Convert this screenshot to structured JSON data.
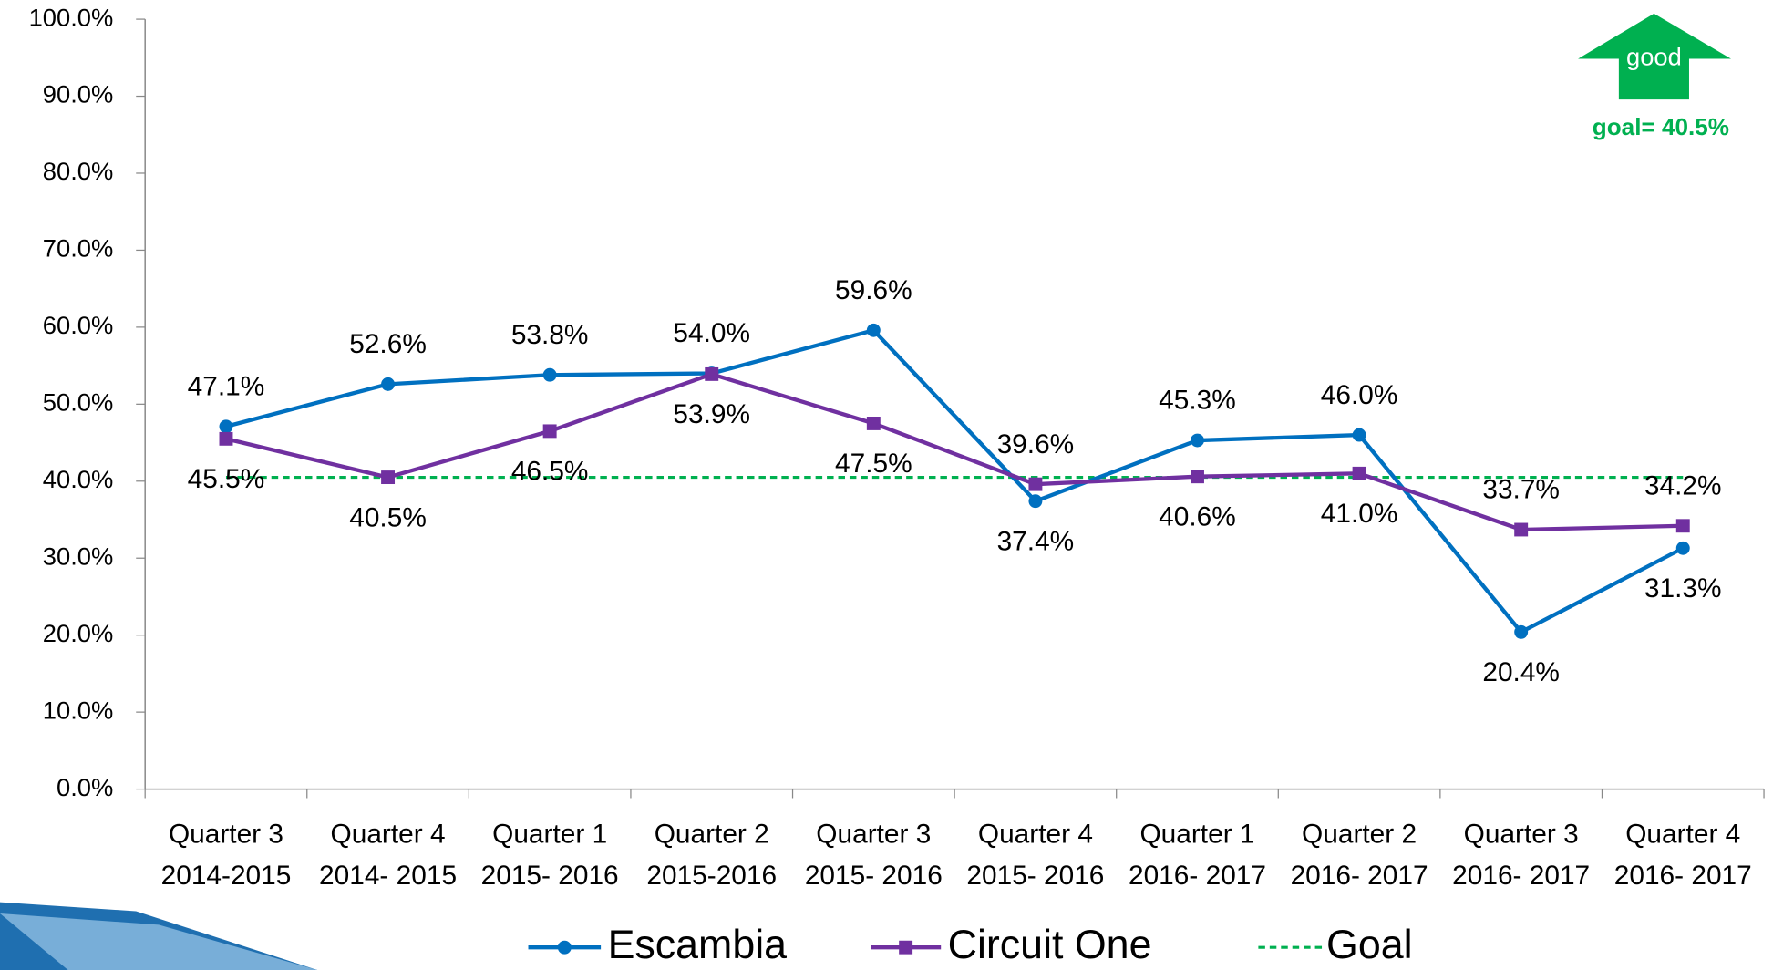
{
  "chart_data": {
    "type": "line",
    "categories": [
      [
        "Quarter 3",
        "2014-2015"
      ],
      [
        "Quarter 4",
        "2014- 2015"
      ],
      [
        "Quarter 1",
        "2015- 2016"
      ],
      [
        "Quarter 2",
        "2015-2016"
      ],
      [
        "Quarter 3",
        "2015- 2016"
      ],
      [
        "Quarter 4",
        "2015- 2016"
      ],
      [
        "Quarter 1",
        "2016- 2017"
      ],
      [
        "Quarter 2",
        "2016- 2017"
      ],
      [
        "Quarter 3",
        "2016- 2017"
      ],
      [
        "Quarter 4",
        "2016- 2017"
      ]
    ],
    "series": [
      {
        "name": "Escambia",
        "color": "#0070c0",
        "marker": "circle",
        "values": [
          47.1,
          52.6,
          53.8,
          54.0,
          59.6,
          37.4,
          45.3,
          46.0,
          20.4,
          31.3
        ],
        "value_labels": [
          "47.1%",
          "52.6%",
          "53.8%",
          "54.0%",
          "59.6%",
          "37.4%",
          "45.3%",
          "46.0%",
          "20.4%",
          "31.3%"
        ]
      },
      {
        "name": "Circuit One",
        "color": "#7030a0",
        "marker": "square",
        "values": [
          45.5,
          40.5,
          46.5,
          53.9,
          47.5,
          39.6,
          40.6,
          41.0,
          33.7,
          34.2
        ],
        "value_labels": [
          "45.5%",
          "40.5%",
          "46.5%",
          "53.9%",
          "47.5%",
          "39.6%",
          "40.6%",
          "41.0%",
          "33.7%",
          "34.2%"
        ]
      }
    ],
    "goal": {
      "name": "Goal",
      "value": 40.5,
      "color": "#00b050"
    },
    "annotations": {
      "arrow_text": "good",
      "goal_text": "goal= 40.5%"
    },
    "ylim": [
      0,
      100
    ],
    "yticks": [
      {
        "value": 0,
        "label": "0.0%"
      },
      {
        "value": 10,
        "label": "10.0%"
      },
      {
        "value": 20,
        "label": "20.0%"
      },
      {
        "value": 30,
        "label": "30.0%"
      },
      {
        "value": 40,
        "label": "40.0%"
      },
      {
        "value": 50,
        "label": "50.0%"
      },
      {
        "value": 60,
        "label": "60.0%"
      },
      {
        "value": 70,
        "label": "70.0%"
      },
      {
        "value": 80,
        "label": "80.0%"
      },
      {
        "value": 90,
        "label": "90.0%"
      },
      {
        "value": 100,
        "label": "100.0%"
      }
    ],
    "legend": "bottom"
  }
}
